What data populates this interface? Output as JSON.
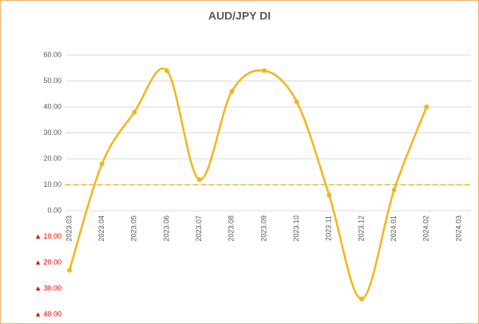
{
  "chart_data": {
    "type": "line",
    "title": "AUD/JPY  DI",
    "categories": [
      "2023.03",
      "2023.04",
      "2023.05",
      "2023.06",
      "2023.07",
      "2023.08",
      "2023.09",
      "2023.10",
      "2023.11",
      "2023.12",
      "2024.01",
      "2024.02",
      "2024.03"
    ],
    "series": [
      {
        "name": "AUD/JPY DI",
        "color": "#f4b41a",
        "values": [
          -23,
          18,
          38,
          54,
          12,
          46,
          54,
          42,
          6,
          -34,
          8,
          40,
          null
        ]
      }
    ],
    "smooth": true,
    "reference_line": 10,
    "ylim": [
      -40,
      60
    ],
    "yticks": [
      {
        "value": -40,
        "label": "▲ 40.00"
      },
      {
        "value": -30,
        "label": "▲ 30.00"
      },
      {
        "value": -20,
        "label": "▲ 20.00"
      },
      {
        "value": -10,
        "label": "▲ 10.00"
      },
      {
        "value": 0,
        "label": "0.00"
      },
      {
        "value": 10,
        "label": "10.00"
      },
      {
        "value": 20,
        "label": "20.00"
      },
      {
        "value": 30,
        "label": "30.00"
      },
      {
        "value": 40,
        "label": "40.00"
      },
      {
        "value": 50,
        "label": "50.00"
      },
      {
        "value": 60,
        "label": "60.00"
      }
    ],
    "negative_tick_color": "#e00000",
    "grid": true
  }
}
